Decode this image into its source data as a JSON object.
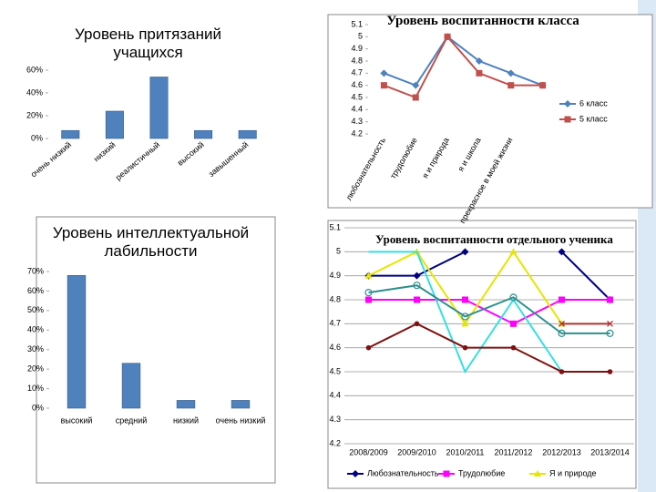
{
  "chart_data": [
    {
      "type": "bar",
      "title": "Уровень притязаний учащихся",
      "categories": [
        "очень низкий",
        "низкий",
        "реалистичный",
        "высокий",
        "завышенный"
      ],
      "values": [
        7,
        24,
        54,
        7,
        7
      ],
      "color": "#4f81bd",
      "ylim": [
        0,
        60
      ],
      "yticks": [
        {
          "value": 0,
          "label": "0%"
        },
        {
          "value": 20,
          "label": "20%"
        },
        {
          "value": 40,
          "label": "40%"
        },
        {
          "value": 60,
          "label": "60%"
        }
      ],
      "grid": false
    },
    {
      "type": "line",
      "title": "Уровень воспитанности класса",
      "categories": [
        "любознательность",
        "трудолюбие",
        "я и природа",
        "я и школа",
        "прекрасное в моей жизни",
        null
      ],
      "series": [
        {
          "name": "6 класс",
          "color": "#4f81bd",
          "marker": "diamond",
          "values": [
            4.7,
            4.6,
            5.0,
            4.8,
            4.7,
            4.6
          ]
        },
        {
          "name": "5 класс",
          "color": "#c0504d",
          "marker": "square",
          "values": [
            4.6,
            4.5,
            5.0,
            4.7,
            4.6,
            4.6
          ]
        }
      ],
      "ylim": [
        4.2,
        5.1
      ],
      "yticks": [
        4.2,
        4.3,
        4.4,
        4.5,
        4.6,
        4.7,
        4.8,
        4.9,
        5,
        5.1
      ],
      "grid": false,
      "legend": "right"
    },
    {
      "type": "bar",
      "title": "Уровень интеллектуальной лабильности",
      "categories": [
        "высокий",
        "средний",
        "низкий",
        "очень низкий"
      ],
      "values": [
        68,
        23,
        4,
        4
      ],
      "color": "#4f81bd",
      "ylim": [
        0,
        70
      ],
      "yticks": [
        {
          "value": 0,
          "label": "0%"
        },
        {
          "value": 10,
          "label": "10%"
        },
        {
          "value": 20,
          "label": "20%"
        },
        {
          "value": 30,
          "label": "30%"
        },
        {
          "value": 40,
          "label": "40%"
        },
        {
          "value": 50,
          "label": "50%"
        },
        {
          "value": 60,
          "label": "60%"
        },
        {
          "value": 70,
          "label": "70%"
        }
      ],
      "grid": false
    },
    {
      "type": "line",
      "title": "Уровень воспитанности отдельного ученика",
      "categories": [
        "2008/2009",
        "2009/2010",
        "2010/2011",
        "2011/2012",
        "2012/2013",
        "2013/2014"
      ],
      "series": [
        {
          "name": "Любознательность",
          "color": "#000080",
          "marker": "diamond",
          "values": [
            4.9,
            4.9,
            5.0,
            null,
            5.0,
            4.8
          ]
        },
        {
          "name": "Трудолюбие",
          "color": "#ff00ff",
          "marker": "square",
          "values": [
            4.8,
            4.8,
            4.8,
            4.7,
            4.8,
            4.8
          ]
        },
        {
          "name": "Я и природе",
          "color": "#e6e600",
          "marker": "triangle",
          "values": [
            4.9,
            5.0,
            4.7,
            5.0,
            4.7,
            null
          ]
        },
        {
          "color": "#33e0e0",
          "marker": "none",
          "values": [
            5.0,
            5.0,
            4.5,
            4.8,
            4.5,
            null
          ]
        },
        {
          "color": "#2f8f8f",
          "marker": "circle",
          "values": [
            4.83,
            4.86,
            4.73,
            4.81,
            4.66,
            4.66
          ]
        },
        {
          "color": "#7f1010",
          "marker": "dot",
          "values": [
            4.6,
            4.7,
            4.6,
            4.6,
            4.5,
            4.5
          ]
        },
        {
          "color": "#b03030",
          "marker": "x",
          "values": [
            null,
            null,
            null,
            null,
            4.7,
            4.7
          ]
        }
      ],
      "ylim": [
        4.2,
        5.1
      ],
      "yticks": [
        4.2,
        4.3,
        4.4,
        4.5,
        4.6,
        4.7,
        4.8,
        4.9,
        5,
        5.1
      ],
      "grid": true,
      "legend": "bottom"
    }
  ]
}
